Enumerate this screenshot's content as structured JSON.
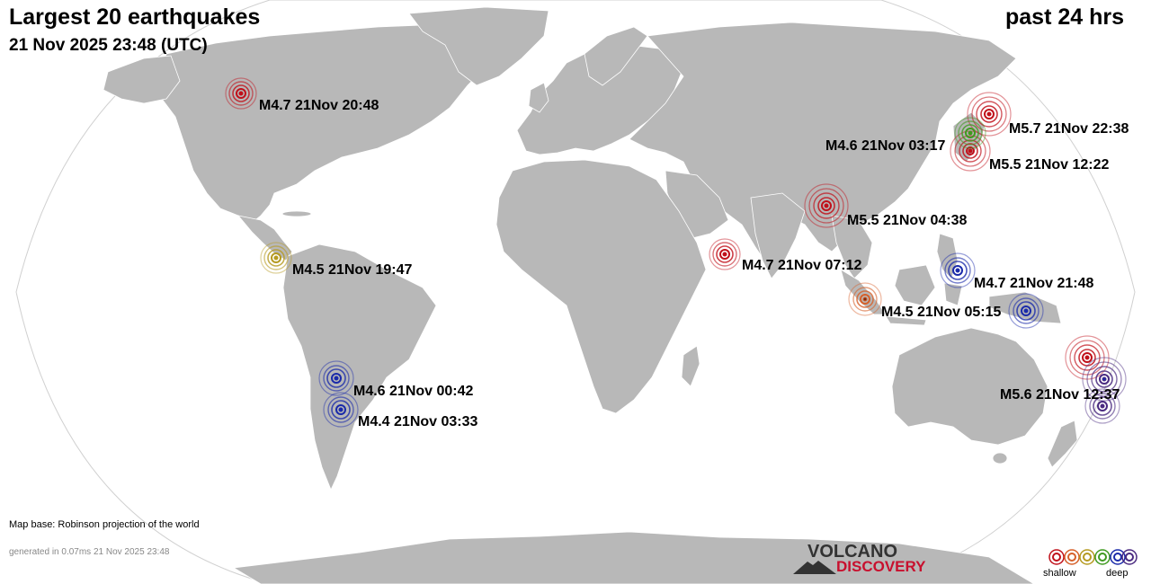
{
  "header": {
    "title": "Largest 20 earthquakes",
    "timestamp": "21 Nov 2025 23:48 (UTC)",
    "period": "past 24 hrs"
  },
  "footer": {
    "map_base": "Map base: Robinson projection of the world",
    "generated": "generated in 0.07ms 21 Nov 2025 23:48"
  },
  "logo": {
    "line1": "VOLCANO",
    "line2": "DISCOVERY"
  },
  "legend": {
    "shallow": "shallow",
    "deep": "deep"
  },
  "colors": {
    "land": "#b8b8b8",
    "ocean": "#ffffff",
    "depth_scale": [
      "#c0101a",
      "#d6602a",
      "#b59a20",
      "#3f9a20",
      "#1a2aaa",
      "#4a2a80"
    ]
  },
  "quakes": [
    {
      "mag": "M4.7",
      "time": "21Nov 20:48",
      "depth": "shallow",
      "label": "M4.7 21Nov 20:48"
    },
    {
      "mag": "M5.7",
      "time": "21Nov 22:38",
      "depth": "shallow",
      "label": "M5.7 21Nov 22:38"
    },
    {
      "mag": "M4.6",
      "time": "21Nov 03:17",
      "depth": "intermediate",
      "label": "M4.6 21Nov 03:17"
    },
    {
      "mag": "M5.5",
      "time": "21Nov 12:22",
      "depth": "shallow",
      "label": "M5.5 21Nov 12:22"
    },
    {
      "mag": "M5.5",
      "time": "21Nov 04:38",
      "depth": "shallow",
      "label": "M5.5 21Nov 04:38"
    },
    {
      "mag": "M4.5",
      "time": "21Nov 19:47",
      "depth": "intermediate",
      "label": "M4.5 21Nov 19:47"
    },
    {
      "mag": "M4.7",
      "time": "21Nov 07:12",
      "depth": "shallow",
      "label": "M4.7 21Nov 07:12"
    },
    {
      "mag": "M4.7",
      "time": "21Nov 21:48",
      "depth": "deep",
      "label": "M4.7 21Nov 21:48"
    },
    {
      "mag": "M4.5",
      "time": "21Nov 05:15",
      "depth": "shallow",
      "label": "M4.5 21Nov 05:15"
    },
    {
      "mag": "M5.6",
      "time": "21Nov 12:37",
      "depth": "shallow",
      "label": "M5.6 21Nov 12:37"
    },
    {
      "mag": "M4.6",
      "time": "21Nov 00:42",
      "depth": "deep",
      "label": "M4.6 21Nov 00:42"
    },
    {
      "mag": "M4.4",
      "time": "21Nov 03:33",
      "depth": "deep",
      "label": "M4.4 21Nov 03:33"
    }
  ]
}
